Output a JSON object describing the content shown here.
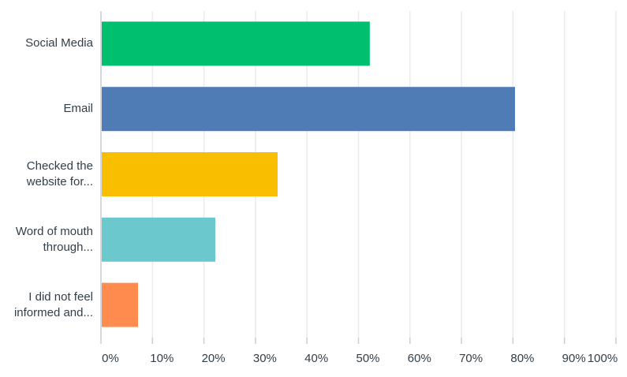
{
  "chart_data": {
    "type": "bar",
    "orientation": "horizontal",
    "categories": [
      [
        "Social Media"
      ],
      [
        "Email"
      ],
      [
        "Checked the",
        "website for..."
      ],
      [
        "Word of mouth",
        "through..."
      ],
      [
        "I did not feel",
        "informed and..."
      ]
    ],
    "values": [
      52.2,
      80.4,
      34.3,
      22.2,
      7.2
    ],
    "colors": [
      "#00bf6f",
      "#507cb6",
      "#f9be00",
      "#6bc8cd",
      "#ff8b4f"
    ],
    "x_ticks": [
      "0%",
      "10%",
      "20%",
      "30%",
      "40%",
      "50%",
      "60%",
      "70%",
      "80%",
      "90%",
      "100%"
    ],
    "xlim": [
      0,
      100
    ],
    "grid": true,
    "legend": "none"
  }
}
